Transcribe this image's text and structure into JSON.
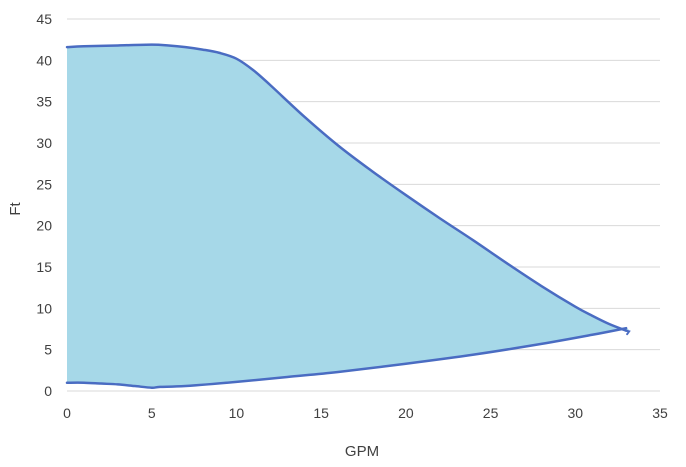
{
  "chart_data": {
    "type": "area",
    "xlabel": "GPM",
    "ylabel": "Ft",
    "xlim": [
      0,
      35
    ],
    "ylim": [
      0,
      45
    ],
    "xticks": [
      0,
      5,
      10,
      15,
      20,
      25,
      30,
      35
    ],
    "yticks": [
      0,
      5,
      10,
      15,
      20,
      25,
      30,
      35,
      40,
      45
    ],
    "grid": "horizontal",
    "legend": "none",
    "fill_color": "#a6d8e8",
    "line_color": "#4a6cc2",
    "upper_curve": {
      "x": [
        0,
        1,
        3,
        5,
        6,
        7,
        8,
        9,
        10,
        11,
        12,
        14,
        16,
        18,
        20,
        22,
        24,
        26,
        28,
        30,
        31,
        32,
        33
      ],
      "y": [
        41.6,
        41.7,
        41.8,
        41.9,
        41.8,
        41.6,
        41.3,
        40.9,
        40.2,
        38.8,
        37.0,
        33.2,
        29.7,
        26.6,
        23.7,
        20.9,
        18.2,
        15.4,
        12.7,
        10.2,
        9.1,
        8.1,
        7.3
      ]
    },
    "lower_curve": {
      "x": [
        0,
        1,
        2,
        3,
        4,
        5,
        5.5,
        7,
        10,
        13,
        16,
        20,
        24,
        28,
        31,
        33
      ],
      "y": [
        1.0,
        1.0,
        0.9,
        0.8,
        0.6,
        0.4,
        0.5,
        0.6,
        1.1,
        1.7,
        2.3,
        3.3,
        4.4,
        5.7,
        6.8,
        7.6
      ]
    }
  }
}
